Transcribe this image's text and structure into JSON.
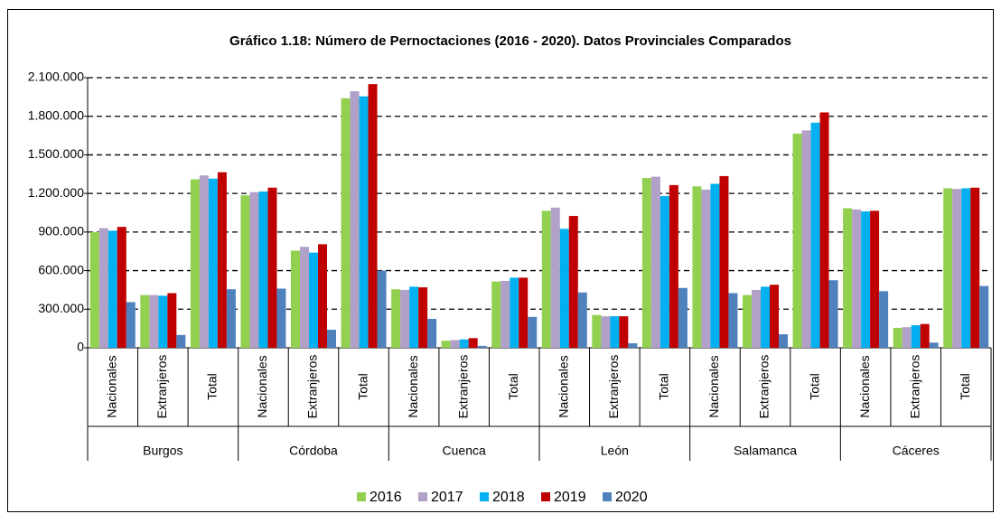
{
  "chart_data": {
    "type": "bar",
    "title": "Gráfico 1.18: Número de Pernoctaciones (2016 - 2020). Datos Provinciales Comparados",
    "groups": [
      "Burgos",
      "Córdoba",
      "Cuenca",
      "León",
      "Salamanca",
      "Cáceres"
    ],
    "categories": [
      "Nacionales",
      "Extranjeros",
      "Total",
      "Nacionales",
      "Extranjeros",
      "Total",
      "Nacionales",
      "Extranjeros",
      "Total",
      "Nacionales",
      "Extranjeros",
      "Total",
      "Nacionales",
      "Extranjeros",
      "Total",
      "Nacionales",
      "Extranjeros",
      "Total"
    ],
    "series": [
      {
        "name": "2016",
        "color": "#92d050",
        "values": [
          900000,
          410000,
          1310000,
          1185000,
          755000,
          1940000,
          455000,
          55000,
          515000,
          1065000,
          255000,
          1320000,
          1255000,
          410000,
          1665000,
          1085000,
          155000,
          1240000
        ]
      },
      {
        "name": "2017",
        "color": "#b1a0c7",
        "values": [
          930000,
          410000,
          1340000,
          1210000,
          785000,
          1995000,
          450000,
          60000,
          520000,
          1090000,
          245000,
          1330000,
          1230000,
          450000,
          1690000,
          1075000,
          160000,
          1235000
        ]
      },
      {
        "name": "2018",
        "color": "#00b0f0",
        "values": [
          910000,
          405000,
          1315000,
          1215000,
          740000,
          1955000,
          475000,
          65000,
          545000,
          925000,
          245000,
          1180000,
          1275000,
          475000,
          1750000,
          1060000,
          175000,
          1240000
        ]
      },
      {
        "name": "2019",
        "color": "#c00000",
        "values": [
          940000,
          425000,
          1365000,
          1245000,
          805000,
          2050000,
          470000,
          75000,
          545000,
          1025000,
          245000,
          1265000,
          1335000,
          490000,
          1830000,
          1065000,
          185000,
          1245000
        ]
      },
      {
        "name": "2020",
        "color": "#4f81bd",
        "values": [
          355000,
          100000,
          455000,
          460000,
          140000,
          600000,
          225000,
          15000,
          240000,
          430000,
          35000,
          465000,
          425000,
          105000,
          525000,
          440000,
          40000,
          480000
        ]
      }
    ],
    "ylim": [
      0,
      2100000
    ],
    "yticks": [
      0,
      {
        "value": 300000,
        "label": "300.000"
      },
      {
        "value": 600000,
        "label": "600.000"
      },
      {
        "value": 900000,
        "label": "900.000"
      },
      {
        "value": 1200000,
        "label": "1.200.000"
      },
      {
        "value": 1500000,
        "label": "1.500.000"
      },
      {
        "value": 1800000,
        "label": "1.800.000"
      },
      {
        "value": 2100000,
        "label": "2.100.000"
      }
    ],
    "grid": true,
    "legend": "bottom"
  }
}
